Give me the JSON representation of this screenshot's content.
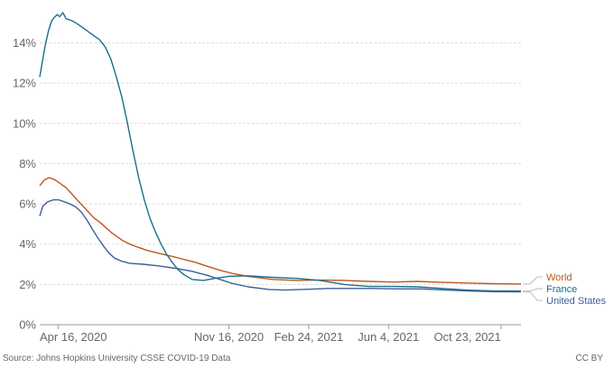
{
  "chart_data": {
    "type": "line",
    "title": "",
    "xlabel": "",
    "ylabel": "",
    "ylim": [
      0,
      15.5
    ],
    "y_ticks": [
      0,
      2,
      4,
      6,
      8,
      10,
      12,
      14
    ],
    "y_tick_format": "{v}%",
    "x_range": [
      "2020-03-24",
      "2021-11-17"
    ],
    "x_ticks": [
      {
        "date": "2020-04-16",
        "label": "Apr 16, 2020"
      },
      {
        "date": "2020-11-16",
        "label": "Nov 16, 2020"
      },
      {
        "date": "2021-02-24",
        "label": "Feb 24, 2021"
      },
      {
        "date": "2021-06-04",
        "label": "Jun 4, 2021"
      },
      {
        "date": "2021-10-23",
        "label": "Oct 23, 2021"
      }
    ],
    "grid": true,
    "legend_position": "right-end-labels",
    "series": [
      {
        "name": "World",
        "color": "#c0551c",
        "points": [
          [
            "2020-03-24",
            6.9
          ],
          [
            "2020-03-30",
            7.2
          ],
          [
            "2020-04-05",
            7.3
          ],
          [
            "2020-04-12",
            7.2
          ],
          [
            "2020-04-19",
            7.0
          ],
          [
            "2020-04-26",
            6.8
          ],
          [
            "2020-05-03",
            6.5
          ],
          [
            "2020-05-10",
            6.2
          ],
          [
            "2020-05-17",
            5.9
          ],
          [
            "2020-05-24",
            5.6
          ],
          [
            "2020-05-31",
            5.3
          ],
          [
            "2020-06-07",
            5.1
          ],
          [
            "2020-06-14",
            4.85
          ],
          [
            "2020-06-21",
            4.6
          ],
          [
            "2020-06-28",
            4.4
          ],
          [
            "2020-07-05",
            4.2
          ],
          [
            "2020-07-15",
            4.0
          ],
          [
            "2020-07-25",
            3.85
          ],
          [
            "2020-08-05",
            3.7
          ],
          [
            "2020-08-20",
            3.55
          ],
          [
            "2020-09-05",
            3.4
          ],
          [
            "2020-09-20",
            3.25
          ],
          [
            "2020-10-05",
            3.1
          ],
          [
            "2020-10-20",
            2.9
          ],
          [
            "2020-11-05",
            2.7
          ],
          [
            "2020-11-20",
            2.55
          ],
          [
            "2020-12-10",
            2.4
          ],
          [
            "2021-01-10",
            2.25
          ],
          [
            "2021-02-10",
            2.2
          ],
          [
            "2021-03-10",
            2.22
          ],
          [
            "2021-04-10",
            2.2
          ],
          [
            "2021-05-10",
            2.15
          ],
          [
            "2021-06-10",
            2.12
          ],
          [
            "2021-07-10",
            2.15
          ],
          [
            "2021-08-10",
            2.1
          ],
          [
            "2021-09-10",
            2.07
          ],
          [
            "2021-10-10",
            2.04
          ],
          [
            "2021-11-17",
            2.02
          ]
        ]
      },
      {
        "name": "France",
        "color": "#18708c",
        "points": [
          [
            "2020-03-24",
            12.3
          ],
          [
            "2020-03-27",
            13.0
          ],
          [
            "2020-03-31",
            13.9
          ],
          [
            "2020-04-04",
            14.6
          ],
          [
            "2020-04-08",
            15.1
          ],
          [
            "2020-04-12",
            15.3
          ],
          [
            "2020-04-15",
            15.4
          ],
          [
            "2020-04-18",
            15.3
          ],
          [
            "2020-04-22",
            15.5
          ],
          [
            "2020-04-26",
            15.2
          ],
          [
            "2020-05-03",
            15.1
          ],
          [
            "2020-05-10",
            14.95
          ],
          [
            "2020-05-17",
            14.75
          ],
          [
            "2020-05-24",
            14.55
          ],
          [
            "2020-05-31",
            14.35
          ],
          [
            "2020-06-07",
            14.15
          ],
          [
            "2020-06-14",
            13.8
          ],
          [
            "2020-06-21",
            13.2
          ],
          [
            "2020-06-28",
            12.3
          ],
          [
            "2020-07-05",
            11.3
          ],
          [
            "2020-07-12",
            10.0
          ],
          [
            "2020-07-19",
            8.6
          ],
          [
            "2020-07-26",
            7.3
          ],
          [
            "2020-08-02",
            6.2
          ],
          [
            "2020-08-09",
            5.3
          ],
          [
            "2020-08-16",
            4.6
          ],
          [
            "2020-08-23",
            4.0
          ],
          [
            "2020-08-30",
            3.5
          ],
          [
            "2020-09-06",
            3.1
          ],
          [
            "2020-09-13",
            2.75
          ],
          [
            "2020-09-20",
            2.5
          ],
          [
            "2020-10-01",
            2.25
          ],
          [
            "2020-10-15",
            2.2
          ],
          [
            "2020-10-29",
            2.3
          ],
          [
            "2020-11-16",
            2.4
          ],
          [
            "2020-12-10",
            2.43
          ],
          [
            "2021-01-10",
            2.35
          ],
          [
            "2021-02-10",
            2.3
          ],
          [
            "2021-03-10",
            2.2
          ],
          [
            "2021-04-10",
            2.0
          ],
          [
            "2021-05-10",
            1.9
          ],
          [
            "2021-06-10",
            1.9
          ],
          [
            "2021-07-10",
            1.88
          ],
          [
            "2021-08-10",
            1.8
          ],
          [
            "2021-09-10",
            1.72
          ],
          [
            "2021-10-10",
            1.68
          ],
          [
            "2021-11-17",
            1.67
          ]
        ]
      },
      {
        "name": "United States",
        "color": "#3c5f9c",
        "points": [
          [
            "2020-03-24",
            5.4
          ],
          [
            "2020-03-28",
            5.9
          ],
          [
            "2020-04-03",
            6.1
          ],
          [
            "2020-04-10",
            6.2
          ],
          [
            "2020-04-17",
            6.2
          ],
          [
            "2020-04-24",
            6.1
          ],
          [
            "2020-05-01",
            6.0
          ],
          [
            "2020-05-08",
            5.85
          ],
          [
            "2020-05-15",
            5.6
          ],
          [
            "2020-05-22",
            5.2
          ],
          [
            "2020-05-29",
            4.75
          ],
          [
            "2020-06-05",
            4.3
          ],
          [
            "2020-06-12",
            3.9
          ],
          [
            "2020-06-19",
            3.55
          ],
          [
            "2020-06-26",
            3.3
          ],
          [
            "2020-07-05",
            3.15
          ],
          [
            "2020-07-15",
            3.05
          ],
          [
            "2020-08-01",
            3.0
          ],
          [
            "2020-08-20",
            2.92
          ],
          [
            "2020-09-10",
            2.8
          ],
          [
            "2020-10-01",
            2.65
          ],
          [
            "2020-10-20",
            2.45
          ],
          [
            "2020-11-05",
            2.25
          ],
          [
            "2020-11-20",
            2.05
          ],
          [
            "2020-12-10",
            1.88
          ],
          [
            "2021-01-05",
            1.75
          ],
          [
            "2021-01-25",
            1.72
          ],
          [
            "2021-02-24",
            1.76
          ],
          [
            "2021-03-20",
            1.8
          ],
          [
            "2021-04-15",
            1.8
          ],
          [
            "2021-05-15",
            1.8
          ],
          [
            "2021-06-15",
            1.78
          ],
          [
            "2021-07-15",
            1.78
          ],
          [
            "2021-08-15",
            1.72
          ],
          [
            "2021-09-15",
            1.67
          ],
          [
            "2021-10-15",
            1.64
          ],
          [
            "2021-11-17",
            1.63
          ]
        ]
      }
    ]
  },
  "footer": {
    "source": "Source: Johns Hopkins University CSSE COVID-19 Data",
    "license": "CC BY"
  }
}
